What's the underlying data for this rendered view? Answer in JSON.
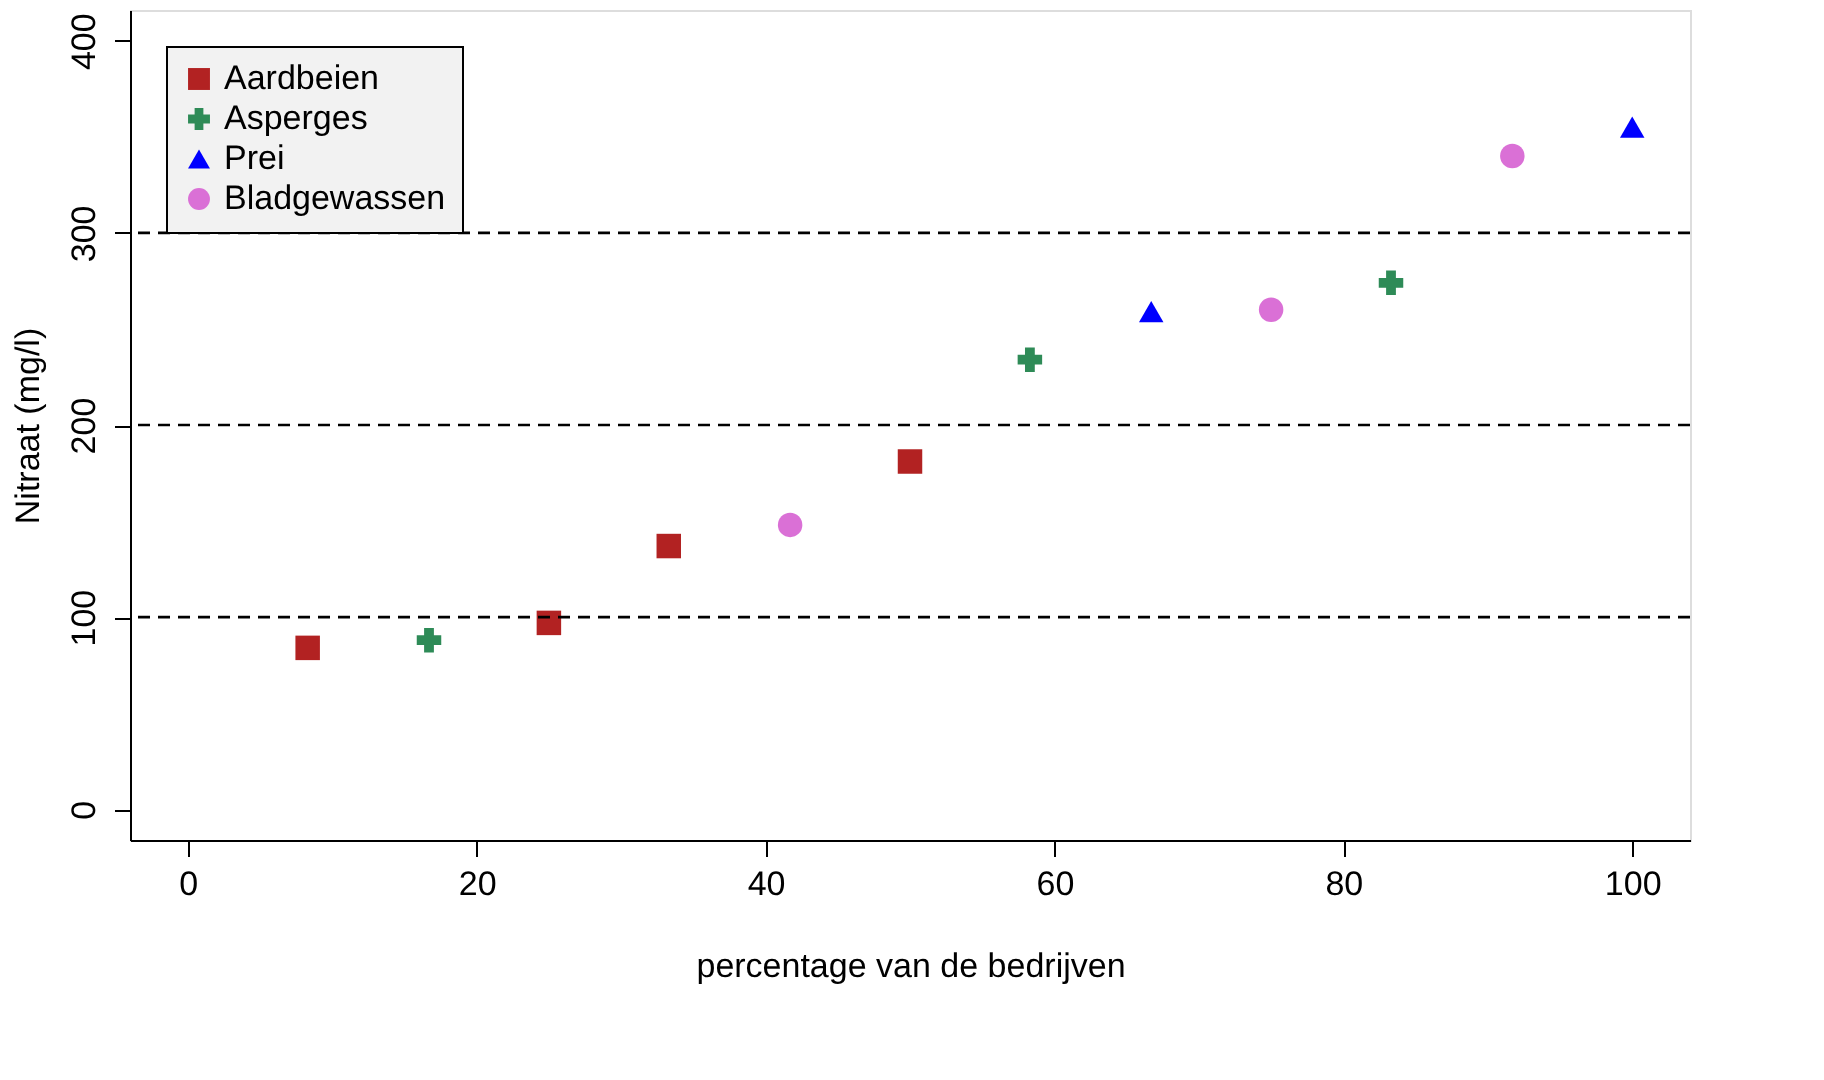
{
  "chart_data": {
    "type": "scatter",
    "xlabel": "percentage van de bedrijven",
    "ylabel": "Nitraat (mg/l)",
    "xlim": [
      -4,
      104
    ],
    "ylim": [
      -16,
      416
    ],
    "xticks": [
      0,
      20,
      40,
      60,
      80,
      100
    ],
    "yticks": [
      0,
      100,
      200,
      300,
      400
    ],
    "grid": false,
    "legend": "top left",
    "ref_lines": [
      {
        "axis": "y",
        "value": 100,
        "line_style": "dashed",
        "color": "#000000"
      },
      {
        "axis": "y",
        "value": 200,
        "line_style": "dashed",
        "color": "#000000"
      },
      {
        "axis": "y",
        "value": 300,
        "line_style": "dashed",
        "color": "#000000"
      }
    ],
    "series": [
      {
        "name": "Aardbeien",
        "color": "#b22222",
        "marker": "square",
        "x": [
          8.3,
          25.0,
          33.3,
          50.0
        ],
        "values": [
          84,
          97,
          137,
          181
        ]
      },
      {
        "name": "Asperges",
        "color": "#2e8b57",
        "marker": "cross",
        "x": [
          16.7,
          58.3,
          83.3
        ],
        "values": [
          88,
          234,
          274
        ]
      },
      {
        "name": "Prei",
        "color": "#0000ff",
        "marker": "triangle",
        "x": [
          66.7,
          100.0
        ],
        "values": [
          259,
          355
        ]
      },
      {
        "name": "Bladgewassen",
        "color": "#da70d6",
        "marker": "circle",
        "x": [
          41.7,
          75.0,
          91.7
        ],
        "values": [
          148,
          260,
          340
        ]
      }
    ]
  }
}
